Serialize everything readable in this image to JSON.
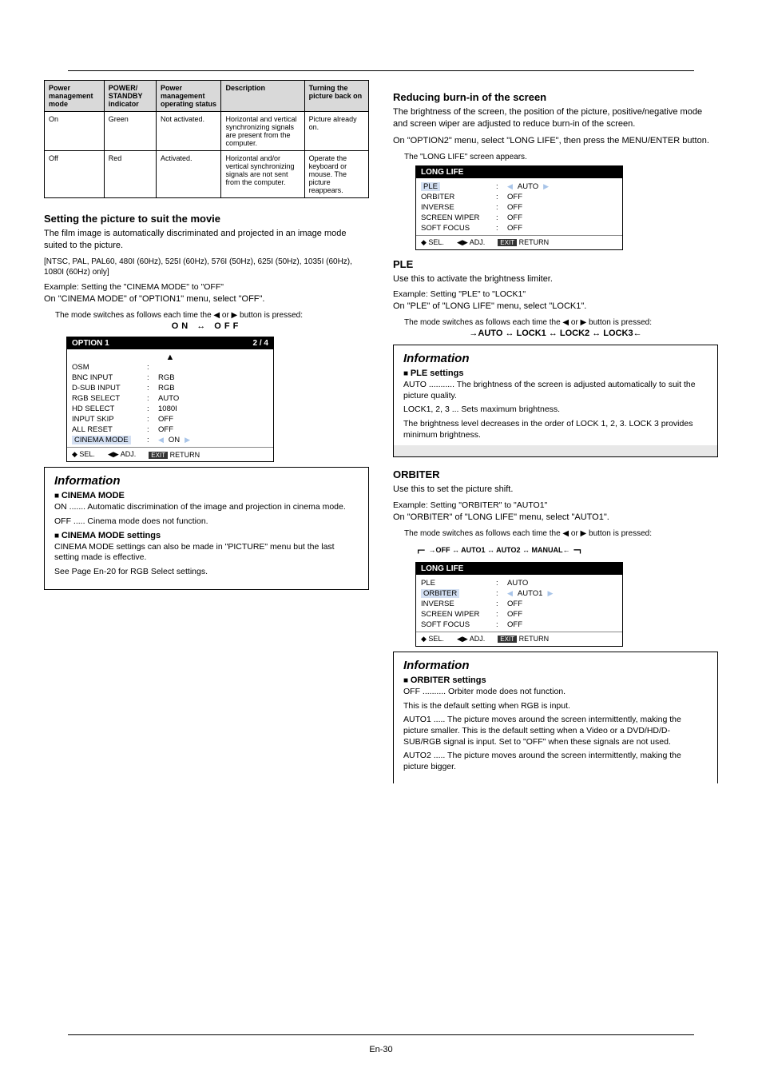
{
  "page_number": "En-30",
  "col_left": {
    "table": {
      "headers": [
        "Power management mode",
        "POWER/ STANDBY indicator",
        "Power management operating status",
        "Description",
        "Turning the picture back on"
      ],
      "rows": [
        [
          "On",
          "Green",
          "Not activated.",
          "Horizontal and vertical synchronizing signals are present from the computer.",
          "Picture already on."
        ],
        [
          "Off",
          "Red",
          "Activated.",
          "Horizontal and/or vertical synchronizing signals are not sent from the computer.",
          "Operate the keyboard or mouse. The picture reappears."
        ]
      ]
    },
    "cinema_h": "Setting the picture to suit the movie",
    "cinema_p": "The film image is automatically discriminated and projected in an image mode suited to the picture.",
    "cinema_note": "[NTSC, PAL, PAL60, 480I (60Hz), 525I (60Hz), 576I (50Hz), 625I (50Hz), 1035I (60Hz), 1080I (60Hz) only]",
    "cinema_ex": "Example: Setting the \"CINEMA MODE\" to \"OFF\"",
    "cinema_steps": [
      "On \"CINEMA MODE\" of \"OPTION1\" menu, select \"OFF\".",
      "The mode switches as follows each time the ◀ or ▶ button is pressed:",
      "ON ↔ OFF"
    ],
    "menu1": {
      "title": "OPTION 1",
      "page_no": "2 / 4",
      "rows": [
        {
          "lbl": "OSM",
          "val": ""
        },
        {
          "lbl": "BNC INPUT",
          "val": "RGB"
        },
        {
          "lbl": "D-SUB INPUT",
          "val": "RGB"
        },
        {
          "lbl": "RGB SELECT",
          "val": "AUTO"
        },
        {
          "lbl": "HD SELECT",
          "val": "1080I"
        },
        {
          "lbl": "INPUT SKIP",
          "val": "OFF"
        },
        {
          "lbl": "ALL RESET",
          "val": "OFF"
        },
        {
          "lbl": "CINEMA MODE",
          "val": "ON",
          "sel": true
        }
      ],
      "arrow_label": "▲"
    },
    "info1": {
      "title": "Information",
      "h_a": "CINEMA MODE",
      "p_a": "ON ....... Automatic discrimination of the image and projection in cinema mode.",
      "p_a2": "OFF ..... Cinema mode does not function.",
      "h_b": "CINEMA MODE settings",
      "p_b": "CINEMA MODE settings can also be made in \"PICTURE\" menu but the last setting made is effective.",
      "p_b2": "See Page En-20 for RGB Select settings."
    }
  },
  "col_right": {
    "contrast_h": "Reducing burn-in of the screen",
    "contrast_p": "The brightness of the screen, the position of the picture, positive/negative mode and screen wiper are adjusted to reduce burn-in of the screen.",
    "contrast_steps": [
      "On \"OPTION2\" menu, select \"LONG LIFE\", then press the MENU/ENTER button.",
      "The \"LONG LIFE\" screen appears."
    ],
    "menu2": {
      "title": "LONG LIFE",
      "rows": [
        {
          "lbl": "PLE",
          "val": "AUTO",
          "sel": true
        },
        {
          "lbl": "ORBITER",
          "val": "OFF"
        },
        {
          "lbl": "INVERSE",
          "val": "OFF"
        },
        {
          "lbl": "SCREEN WIPER",
          "val": "OFF"
        },
        {
          "lbl": "SOFT FOCUS",
          "val": "OFF"
        }
      ]
    },
    "ple_h": "PLE",
    "ple_p": "Use this to activate the brightness limiter.",
    "ple_ex": "Example: Setting \"PLE\" to \"LOCK1\"",
    "ple_steps": [
      "On \"PLE\" of \"LONG LIFE\" menu, select \"LOCK1\".",
      "The mode switches as follows each time the ◀ or ▶ button is pressed:",
      "→AUTO ↔ LOCK1 ↔ LOCK2 ↔ LOCK3←"
    ],
    "info2": {
      "title": "Information",
      "h": "PLE settings",
      "p1": "AUTO ........... The brightness of the screen is adjusted automatically to suit the picture quality.",
      "p2": "LOCK1, 2, 3 ... Sets maximum brightness.",
      "p3": "The brightness level decreases in the order of LOCK 1, 2, 3. LOCK 3 provides minimum brightness."
    },
    "orbiter_h": "ORBITER",
    "orbiter_p": "Use this to set the picture shift.",
    "orbiter_ex": "Example: Setting \"ORBITER\" to \"AUTO1\"",
    "orbiter_steps": [
      "On \"ORBITER\" of \"LONG LIFE\" menu, select \"AUTO1\".",
      "The mode switches as follows each time the ◀ or ▶ button is pressed:",
      "→OFF ↔ AUTO1 ↔ AUTO2 ↔ MANUAL←"
    ],
    "menu3": {
      "title": "LONG LIFE",
      "rows": [
        {
          "lbl": "PLE",
          "val": "AUTO"
        },
        {
          "lbl": "ORBITER",
          "val": "AUTO1",
          "sel": true
        },
        {
          "lbl": "INVERSE",
          "val": "OFF"
        },
        {
          "lbl": "SCREEN WIPER",
          "val": "OFF"
        },
        {
          "lbl": "SOFT FOCUS",
          "val": "OFF"
        }
      ]
    },
    "info3": {
      "title": "Information",
      "h": "ORBITER settings",
      "p1": "OFF .......... Orbiter mode does not function.",
      "p2": "This is the default setting when RGB is input.",
      "p3": "AUTO1 ..... The picture moves around the screen intermittently, making the picture smaller. This is the default setting when a Video or a DVD/HD/D-SUB/RGB signal is input. Set to \"OFF\" when these signals are not used.",
      "p4": "AUTO2 ..... The picture moves around the screen intermittently, making the picture bigger."
    }
  },
  "colors": {
    "menu_sel_bg": "#d3dff2",
    "table_header_bg": "#d9d9d9"
  }
}
